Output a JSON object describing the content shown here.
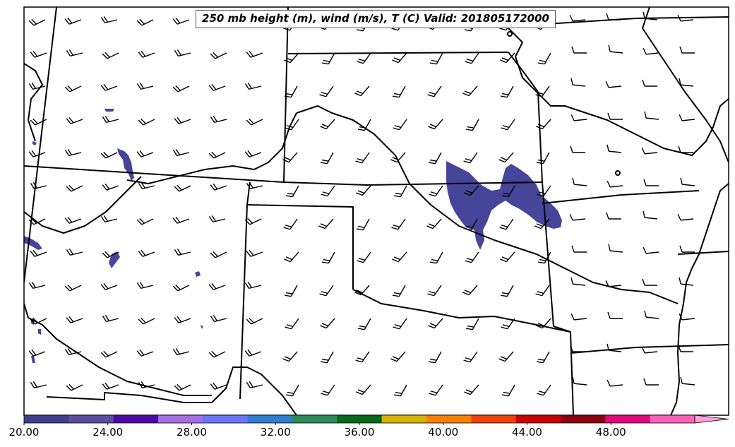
{
  "title": "250 mb height (m), wind (m/s), T (C) Valid: 201805172000",
  "colorbar": {
    "ticks": [
      "20.00",
      "24.00",
      "28.00",
      "32.00",
      "36.00",
      "40.00",
      "44.00",
      "48.00"
    ],
    "min": 20,
    "max": 52,
    "step": 2,
    "colors": [
      "#3f3f8f",
      "#5b4ea0",
      "#4b0aa8",
      "#a66fe6",
      "#6b76ff",
      "#2f7ed1",
      "#2e8b57",
      "#006b1a",
      "#d8b400",
      "#ff8000",
      "#f0420a",
      "#c80000",
      "#8c0010",
      "#e0087a",
      "#ff60b8",
      "#ffa0dc"
    ],
    "extend": "max"
  },
  "shading": {
    "field": "wind speed",
    "shaded_band": "20-22",
    "color": "#45469a"
  },
  "wind_barbs": {
    "west_region": {
      "direction_deg": 250,
      "speed_ms": 20
    },
    "central_region": {
      "direction_deg": 215,
      "speed_ms": 22
    },
    "east_region": {
      "direction_deg": 270,
      "speed_ms": 12
    }
  },
  "legend_extend_color": "#ffa0dc"
}
